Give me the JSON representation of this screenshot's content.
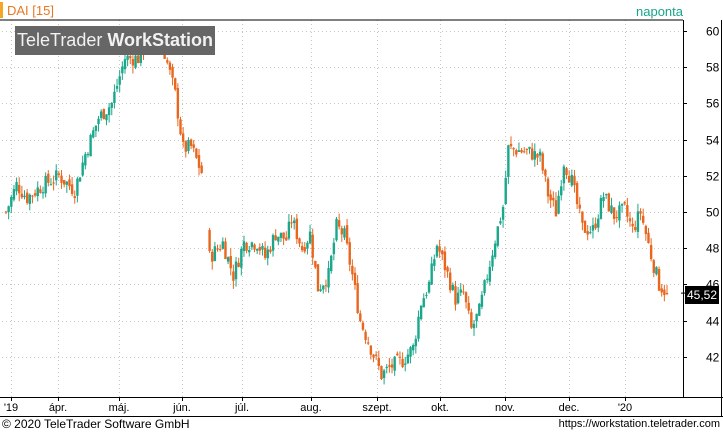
{
  "header": {
    "symbol": "DAI [15]",
    "period": "naponta",
    "watermark_brand": "TeleTrader",
    "watermark_product": "WorkStation"
  },
  "footer": {
    "copyright": "© 2020 TeleTrader Software GmbH",
    "url": "https://workstation.teletrader.com"
  },
  "last_price_label": "45,52",
  "colors": {
    "up": "#1aa78b",
    "down": "#e8661e",
    "grid": "#c8c8c8",
    "axis": "#000000",
    "symbol": "#e87722",
    "period": "#15a58b"
  },
  "chart_data": {
    "type": "candlestick",
    "ylim": [
      40,
      60.5
    ],
    "y_ticks": [
      "60",
      "58",
      "56",
      "54",
      "52",
      "50",
      "48",
      "46",
      "44",
      "42"
    ],
    "x_ticks": [
      "'19",
      "ápr.",
      "máj.",
      "jún.",
      "júl.",
      "aug.",
      "szept.",
      "okt.",
      "nov.",
      "dec.",
      "'20"
    ],
    "last_price": 45.52,
    "path_points": [
      [
        0,
        50.0
      ],
      [
        4,
        51.5
      ],
      [
        8,
        50.8
      ],
      [
        14,
        51.5
      ],
      [
        20,
        52.0
      ],
      [
        26,
        51.2
      ],
      [
        30,
        53.2
      ],
      [
        35,
        55.2
      ],
      [
        40,
        56.0
      ],
      [
        45,
        58.5
      ],
      [
        50,
        58.5
      ],
      [
        55,
        59.8
      ],
      [
        60,
        58.8
      ],
      [
        64,
        56.5
      ],
      [
        67,
        53.5
      ],
      [
        70,
        53.6
      ],
      [
        74,
        52.2
      ],
      [
        77,
        47.5
      ],
      [
        82,
        48.3
      ],
      [
        86,
        46.5
      ],
      [
        90,
        48.3
      ],
      [
        95,
        48.3
      ],
      [
        98,
        47.5
      ],
      [
        102,
        48.8
      ],
      [
        106,
        48.5
      ],
      [
        108,
        49.6
      ],
      [
        112,
        48.0
      ],
      [
        115,
        48.8
      ],
      [
        118,
        45.8
      ],
      [
        122,
        46.5
      ],
      [
        125,
        49.2
      ],
      [
        128,
        48.7
      ],
      [
        131,
        46.5
      ],
      [
        134,
        44.0
      ],
      [
        138,
        42.5
      ],
      [
        142,
        41.0
      ],
      [
        146,
        41.5
      ],
      [
        150,
        41.8
      ],
      [
        154,
        42.5
      ],
      [
        157,
        45.0
      ],
      [
        160,
        46.0
      ],
      [
        163,
        48.2
      ],
      [
        166,
        47.0
      ],
      [
        170,
        45.2
      ],
      [
        173,
        45.5
      ],
      [
        176,
        43.5
      ],
      [
        179,
        44.5
      ],
      [
        182,
        46.5
      ],
      [
        185,
        48.5
      ],
      [
        188,
        50.3
      ],
      [
        190,
        53.5
      ],
      [
        194,
        53.4
      ],
      [
        198,
        53.3
      ],
      [
        202,
        53.0
      ],
      [
        205,
        51.0
      ],
      [
        208,
        50.0
      ],
      [
        211,
        52.8
      ],
      [
        214,
        51.7
      ],
      [
        218,
        49.1
      ],
      [
        222,
        49.0
      ],
      [
        226,
        50.9
      ],
      [
        230,
        49.8
      ],
      [
        234,
        50.1
      ],
      [
        237,
        49.0
      ],
      [
        240,
        50.0
      ],
      [
        244,
        47.6
      ],
      [
        247,
        46.0
      ],
      [
        250,
        45.52
      ]
    ],
    "gaps": [
      [
        74,
        77
      ]
    ]
  }
}
